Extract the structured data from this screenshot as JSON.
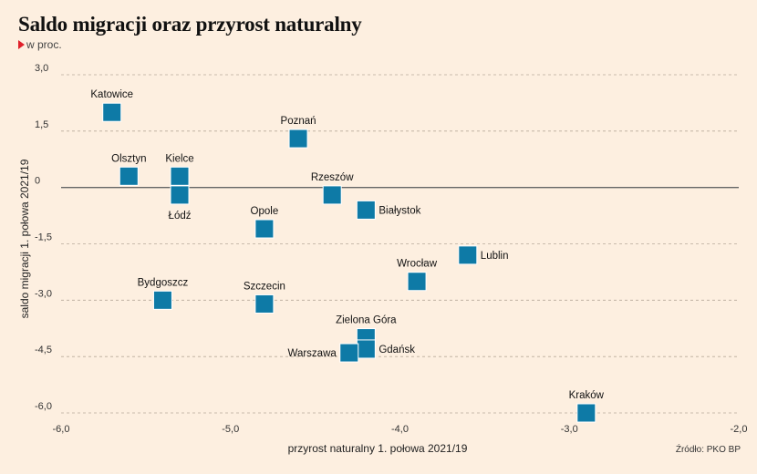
{
  "header": {
    "title": "Saldo migracji oraz przyrost naturalny",
    "subtitle": "w proc."
  },
  "footer": {
    "source": "Źródło: PKO BP"
  },
  "colors": {
    "background": "#fdefe0",
    "marker": "#0e7aa6",
    "grid": "#b8aa9a",
    "zero_line": "#666666",
    "accent": "#e0202a"
  },
  "chart_data": {
    "type": "scatter",
    "xlabel": "przyrost naturalny 1. połowa 2021/19",
    "ylabel": "saldo migracji 1. połowa 2021/19",
    "xlim": [
      -6.0,
      -2.0
    ],
    "ylim": [
      -6.0,
      3.0
    ],
    "xticks": [
      -6.0,
      -5.0,
      -4.0,
      -3.0,
      -2.0
    ],
    "xtick_labels": [
      "-6,0",
      "-5,0",
      "-4,0",
      "-3,0",
      "-2,0"
    ],
    "yticks": [
      3.0,
      1.5,
      0.0,
      -1.5,
      -3.0,
      -4.5,
      -6.0
    ],
    "ytick_labels": [
      "3,0",
      "1,5",
      "0",
      "-1,5",
      "-3,0",
      "-4,5",
      "-6,0"
    ],
    "grid": "horizontal-dashed",
    "points": [
      {
        "label": "Katowice",
        "x": -5.7,
        "y": 2.0,
        "label_pos": "above"
      },
      {
        "label": "Poznań",
        "x": -4.6,
        "y": 1.3,
        "label_pos": "above"
      },
      {
        "label": "Olsztyn",
        "x": -5.6,
        "y": 0.3,
        "label_pos": "above"
      },
      {
        "label": "Kielce",
        "x": -5.3,
        "y": 0.3,
        "label_pos": "above"
      },
      {
        "label": "Łódź",
        "x": -5.3,
        "y": -0.2,
        "label_pos": "below"
      },
      {
        "label": "Rzeszów",
        "x": -4.4,
        "y": -0.2,
        "label_pos": "above"
      },
      {
        "label": "Białystok",
        "x": -4.2,
        "y": -0.6,
        "label_pos": "right"
      },
      {
        "label": "Opole",
        "x": -4.8,
        "y": -1.1,
        "label_pos": "above"
      },
      {
        "label": "Lublin",
        "x": -3.6,
        "y": -1.8,
        "label_pos": "right"
      },
      {
        "label": "Wrocław",
        "x": -3.9,
        "y": -2.5,
        "label_pos": "above"
      },
      {
        "label": "Bydgoszcz",
        "x": -5.4,
        "y": -3.0,
        "label_pos": "above"
      },
      {
        "label": "Szczecin",
        "x": -4.8,
        "y": -3.1,
        "label_pos": "above"
      },
      {
        "label": "Zielona Góra",
        "x": -4.2,
        "y": -4.0,
        "label_pos": "above"
      },
      {
        "label": "Gdańsk",
        "x": -4.2,
        "y": -4.3,
        "label_pos": "right"
      },
      {
        "label": "Warszawa",
        "x": -4.3,
        "y": -4.4,
        "label_pos": "left"
      },
      {
        "label": "Kraków",
        "x": -2.9,
        "y": -6.0,
        "label_pos": "above"
      }
    ]
  }
}
